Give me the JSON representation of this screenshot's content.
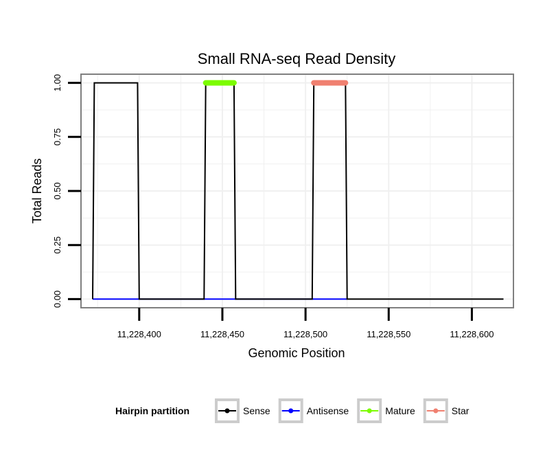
{
  "chart_data": {
    "type": "line",
    "title": "Small RNA-seq Read Density",
    "xlabel": "Genomic Position",
    "ylabel": "Total Reads",
    "xlim": [
      11228365,
      11228625
    ],
    "ylim": [
      -0.04,
      1.04
    ],
    "x_ticks": [
      11228400,
      11228450,
      11228500,
      11228550,
      11228600
    ],
    "x_tick_labels": [
      "11,228,400",
      "11,228,450",
      "11,228,500",
      "11,228,550",
      "11,228,600"
    ],
    "y_ticks": [
      0,
      0.25,
      0.5,
      0.75,
      1
    ],
    "y_tick_labels": [
      "0.00",
      "0.25",
      "0.50",
      "0.75",
      "1.00"
    ],
    "grid": true,
    "legend": {
      "title": "Hairpin partition",
      "position": "bottom",
      "entries": [
        {
          "name": "Sense",
          "color": "#000000"
        },
        {
          "name": "Antisense",
          "color": "#0000ff"
        },
        {
          "name": "Mature",
          "color": "#7cfc00"
        },
        {
          "name": "Star",
          "color": "#f08070"
        }
      ]
    },
    "series": [
      {
        "name": "Sense",
        "color": "#000000",
        "x": [
          11228372,
          11228373,
          11228399,
          11228400,
          11228439,
          11228440,
          11228457,
          11228458,
          11228504,
          11228505,
          11228524,
          11228525,
          11228619
        ],
        "y": [
          0,
          1,
          1,
          0,
          0,
          1,
          1,
          0,
          0,
          1,
          1,
          0,
          0
        ]
      },
      {
        "name": "Antisense",
        "color": "#0000ff",
        "x": [
          11228372,
          11228525
        ],
        "y": [
          0,
          0
        ]
      },
      {
        "name": "Mature",
        "color": "#7cfc00",
        "x": [
          11228440,
          11228457
        ],
        "y": [
          1,
          1
        ]
      },
      {
        "name": "Star",
        "color": "#f08070",
        "x": [
          11228505,
          11228524
        ],
        "y": [
          1,
          1
        ]
      }
    ]
  }
}
